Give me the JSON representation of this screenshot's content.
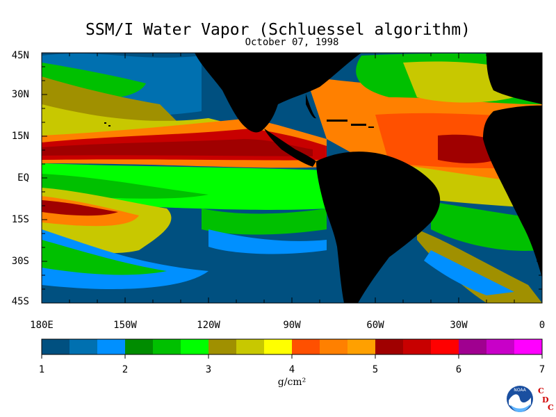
{
  "header": {
    "title": "SSM/I Water Vapor (Schluessel algorithm)",
    "date": "October 07, 1998"
  },
  "map": {
    "projection": "lat-lon",
    "lat_range": [
      -45,
      45
    ],
    "lon_range_deg_east": [
      180,
      360
    ],
    "lat_labels": [
      "45N",
      "30N",
      "15N",
      "EQ",
      "15S",
      "30S",
      "45S"
    ],
    "lon_labels": [
      "180E",
      "150W",
      "120W",
      "90W",
      "60W",
      "30W",
      "0"
    ],
    "land_color": "#000000",
    "ocean_field_description": "integrated water vapor"
  },
  "colorbar": {
    "min": 1,
    "max": 7,
    "tick_labels": [
      "1",
      "2",
      "3",
      "4",
      "5",
      "6",
      "7"
    ],
    "units": "g/cm²",
    "colors": [
      "#005080",
      "#0070b0",
      "#0090ff",
      "#008c00",
      "#00c000",
      "#00ff00",
      "#a09000",
      "#c8c800",
      "#ffff00",
      "#ff5000",
      "#ff8000",
      "#ffa000",
      "#a00000",
      "#c80000",
      "#ff0000",
      "#a00090",
      "#c800c8",
      "#ff00ff"
    ]
  },
  "logo": {
    "noaa_text": "NOAA",
    "cdc_letters": [
      "C",
      "D",
      "C"
    ]
  }
}
